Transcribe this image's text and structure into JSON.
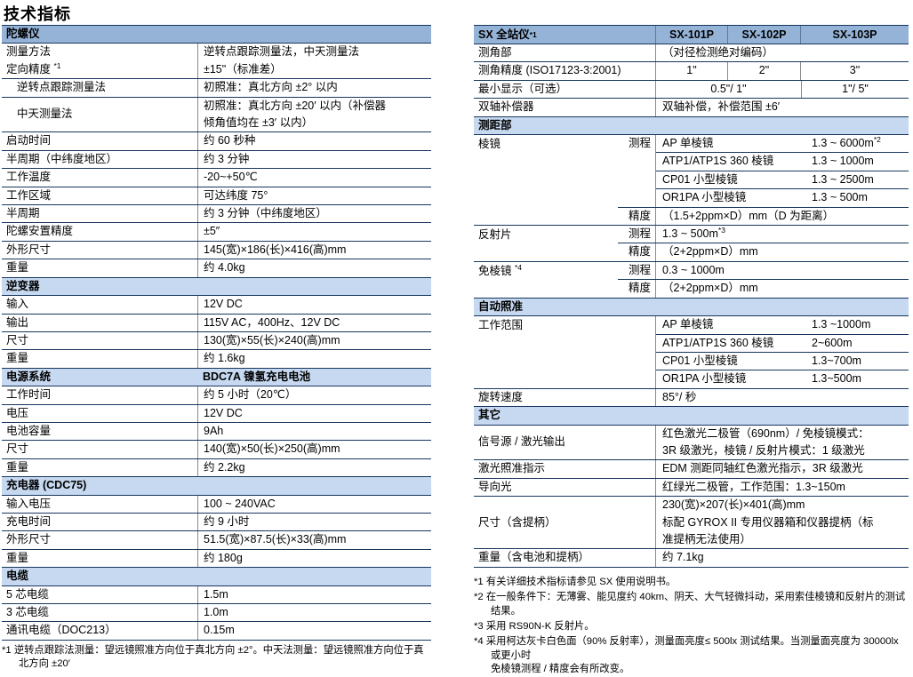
{
  "page": {
    "title": "技术指标"
  },
  "colors": {
    "header_blue": "#95B3D7",
    "section_blue": "#C6D9F0",
    "border_dark": "#17365D",
    "divider_gray": "#8a8a8a"
  },
  "left_table": {
    "rows": [
      {
        "t": "head",
        "label": "陀螺仪"
      },
      {
        "t": "r",
        "label": "测量方法\n定向精度 ^{*1}",
        "value": "逆转点跟踪测量法，中天测量法\n±15\"（标准差）"
      },
      {
        "t": "r",
        "indent": true,
        "label": "逆转点跟踪测量法",
        "value": "初照准：真北方向 ±2° 以内"
      },
      {
        "t": "r",
        "indent": true,
        "center": true,
        "label": "中天测量法",
        "value": "初照准：真北方向 ±20′ 以内（补偿器\n倾角值均在 ±3′ 以内）"
      },
      {
        "t": "r",
        "label": "启动时间",
        "value": "约 60 秒种"
      },
      {
        "t": "r",
        "label": "半周期（中纬度地区）",
        "value": "约 3 分钟"
      },
      {
        "t": "r",
        "label": "工作温度",
        "value": "-20~+50℃"
      },
      {
        "t": "r",
        "label": "工作区域",
        "value": "可达纬度 75°"
      },
      {
        "t": "r",
        "label": "半周期",
        "value": "约 3 分钟（中纬度地区）"
      },
      {
        "t": "r",
        "label": "陀螺安置精度",
        "value": "±5″"
      },
      {
        "t": "r",
        "label": "外形尺寸",
        "value": "145(宽)×186(长)×416(高)mm"
      },
      {
        "t": "r",
        "label": "重量",
        "value": "约 4.0kg"
      },
      {
        "t": "sec",
        "label": "逆变器"
      },
      {
        "t": "r",
        "label": "输入",
        "value": "12V DC"
      },
      {
        "t": "r",
        "label": "输出",
        "value": "115V AC，400Hz、12V DC"
      },
      {
        "t": "r",
        "label": "尺寸",
        "value": "130(宽)×55(长)×240(高)mm"
      },
      {
        "t": "r",
        "label": "重量",
        "value": "约 1.6kg"
      },
      {
        "t": "sec2",
        "label": "电源系统",
        "value": "BDC7A 镍氢充电电池"
      },
      {
        "t": "r",
        "label": "工作时间",
        "value": "约 5 小时（20℃）"
      },
      {
        "t": "r",
        "label": "电压",
        "value": "12V DC"
      },
      {
        "t": "r",
        "label": "电池容量",
        "value": "9Ah"
      },
      {
        "t": "r",
        "label": "尺寸",
        "value": "140(宽)×50(长)×250(高)mm"
      },
      {
        "t": "r",
        "label": "重量",
        "value": "约 2.2kg"
      },
      {
        "t": "sec",
        "label": "充电器 (CDC75)"
      },
      {
        "t": "r",
        "label": "输入电压",
        "value": "100 ~ 240VAC"
      },
      {
        "t": "r",
        "label": "充电时间",
        "value": "约 9 小时"
      },
      {
        "t": "r",
        "label": "外形尺寸",
        "value": "51.5(宽)×87.5(长)×33(高)mm"
      },
      {
        "t": "r",
        "label": "重量",
        "value": "约 180g"
      },
      {
        "t": "sec",
        "label": "电缆"
      },
      {
        "t": "r",
        "label": "5 芯电缆",
        "value": "1.5m"
      },
      {
        "t": "r",
        "label": "3 芯电缆",
        "value": "1.0m"
      },
      {
        "t": "r",
        "label": "通讯电缆（DOC213）",
        "value": "0.15m"
      }
    ],
    "footnote": "*1 逆转点跟踪法测量：望远镜照准方向位于真北方向 ±2°。中天法测量：望远镜照准方向位于真北方向 ±20′"
  },
  "right_table": {
    "rows": [
      {
        "t": "head4",
        "label": "SX 全站仪 ^{*1}",
        "models": [
          "SX-101P",
          "SX-102P",
          "SX-103P"
        ]
      },
      {
        "t": "r1v",
        "label": "测角部",
        "value": "（对径检测绝对编码）"
      },
      {
        "t": "r3",
        "label": "测角精度 (ISO17123-3:2001)",
        "values": [
          "1\"",
          "2\"",
          "3\""
        ]
      },
      {
        "t": "r21",
        "label": "最小显示（可选）",
        "values": [
          "0.5\"/ 1\"",
          "1\"/ 5\""
        ]
      },
      {
        "t": "r1v",
        "label": "双轴补偿器",
        "value": "双轴补偿，补偿范围 ±6′"
      },
      {
        "t": "sec",
        "label": "测距部"
      },
      {
        "t": "grp",
        "label": "棱镜",
        "subs": [
          {
            "key": "测程",
            "pairs": [
              [
                "AP 单棱镜",
                "1.3 ~ 6000m^{*2}"
              ],
              [
                "ATP1/ATP1S 360 棱镜",
                "1.3 ~ 1000m"
              ],
              [
                "CP01 小型棱镜",
                "1.3 ~ 2500m"
              ],
              [
                "OR1PA 小型棱镜",
                "1.3 ~ 500m"
              ]
            ]
          },
          {
            "key": "精度",
            "value": "（1.5+2ppm×D）mm（D 为距离）"
          }
        ]
      },
      {
        "t": "grp",
        "label": "反射片",
        "subs": [
          {
            "key": "测程",
            "value": "1.3 ~ 500m^{*3}"
          },
          {
            "key": "精度",
            "value": "（2+2ppm×D）mm"
          }
        ]
      },
      {
        "t": "grp",
        "label": "免棱镜 ^{*4}",
        "subs": [
          {
            "key": "测程",
            "value": "0.3 ~ 1000m"
          },
          {
            "key": "精度",
            "value": "（2+2ppm×D）mm"
          }
        ]
      },
      {
        "t": "sec",
        "label": "自动照准"
      },
      {
        "t": "grp0",
        "label": "工作范围",
        "pairs": [
          [
            "AP 单棱镜",
            "1.3 ~1000m"
          ],
          [
            "ATP1/ATP1S 360 棱镜",
            "2~600m"
          ],
          [
            "CP01 小型棱镜",
            "1.3~700m"
          ],
          [
            "OR1PA 小型棱镜",
            "1.3~500m"
          ]
        ]
      },
      {
        "t": "r1v",
        "label": "旋转速度",
        "value": "85°/ 秒"
      },
      {
        "t": "sec",
        "label": "其它"
      },
      {
        "t": "r1v",
        "label": "信号源 / 激光输出",
        "value": "红色激光二极管（690nm）/ 免棱镜模式：\n3R 级激光，棱镜 / 反射片模式：1 级激光"
      },
      {
        "t": "r1v",
        "label": "激光照准指示",
        "value": "EDM 测距同轴红色激光指示，3R 级激光"
      },
      {
        "t": "r1v",
        "label": "导向光",
        "value": "红绿光二极管，工作范围：1.3~150m"
      },
      {
        "t": "r1v",
        "label": "尺寸（含提柄）",
        "value": "230(宽)×207(长)×401(高)mm\n标配 GYROX II 专用仪器箱和仪器提柄（标\n准提柄无法使用）"
      },
      {
        "t": "r1v",
        "label": "重量（含电池和提柄）",
        "value": "约 7.1kg"
      }
    ],
    "footnotes": [
      "*1 有关详细技术指标请参见 SX 使用说明书。",
      "*2 在一般条件下：无薄雾、能见度约 40km、阴天、大气轻微抖动，采用索佳棱镜和反射片的测试结果。",
      "*3 采用 RS90N-K 反射片。",
      "*4 采用柯达灰卡白色面（90% 反射率），测量面亮度≤ 500lx 测试结果。当测量面亮度为 30000lx 或更小时\n免棱镜测程 / 精度会有所改变。"
    ]
  }
}
